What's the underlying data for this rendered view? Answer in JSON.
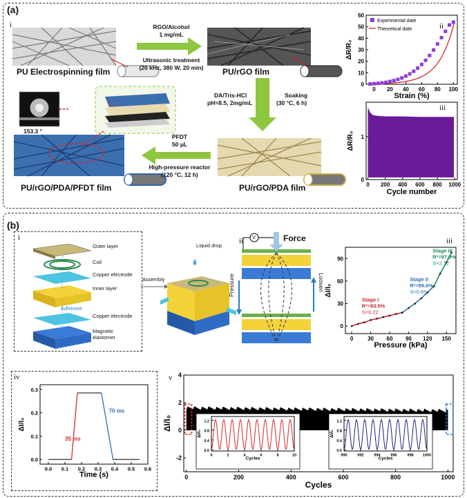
{
  "panel_a": {
    "label": "(a)",
    "sub_i": "i",
    "sub_ii": "ii",
    "sub_iii": "iii",
    "films": {
      "pu": "PU Electrospinning film",
      "rgo": "PU/rGO film",
      "pda": "PU/rGO/PDA film",
      "pfdt": "PU/rGO/PDA/PFDT film"
    },
    "step1": {
      "top1": "RGO/Alcohol",
      "top2": "1 mg/mL",
      "bot1": "Ultrasonic treatment",
      "bot2": "(20 kHz, 380 W, 20 min)"
    },
    "step2": {
      "left1": "DA/Tris-HCl",
      "left2": "pH=8.5, 2mg/mL",
      "right1": "Soaking",
      "right2": "(30 °C, 6 h)"
    },
    "step3": {
      "top1": "PFDT",
      "top2": "50 μL",
      "bot1": "High-pressure reactor",
      "bot2": "(120 °C, 12 h)"
    },
    "contact_angle": "153.3 °",
    "colors": {
      "arrow": "#8dc63f",
      "rgo": "#444444",
      "pda": "#c8b270",
      "pfdt": "#2f64a8",
      "pu": "#bbbbbb"
    }
  },
  "chart_data": [
    {
      "type": "scatter",
      "id": "a-ii",
      "legend": [
        "Experimental date",
        "Theoretical date"
      ],
      "xlabel": "Strain (%)",
      "ylabel": "ΔR/R₀",
      "xticks": [
        "0",
        "20",
        "40",
        "60",
        "80",
        "100"
      ],
      "yticks": [
        "0",
        "10",
        "20",
        "30",
        "40",
        "50",
        "60"
      ],
      "xlim": [
        -10,
        105
      ],
      "ylim": [
        0,
        60
      ],
      "x": [
        -5,
        0,
        5,
        10,
        15,
        20,
        25,
        30,
        35,
        40,
        45,
        50,
        55,
        60,
        65,
        70,
        75,
        80,
        85,
        90,
        95,
        100
      ],
      "y": [
        0.3,
        0.5,
        0.8,
        1.2,
        1.7,
        2.4,
        3.2,
        4.2,
        5.5,
        7.1,
        9.0,
        11.3,
        14.0,
        17.2,
        20.8,
        25.0,
        29.8,
        35.0,
        40.5,
        46.0,
        51.5,
        54.0
      ],
      "colors": {
        "exp": "#8b3fd6",
        "theory": "#d62728"
      }
    },
    {
      "type": "area",
      "id": "a-iii",
      "xlabel": "Cycle number",
      "ylabel": "ΔR/R₀",
      "xticks": [
        "0",
        "200",
        "400",
        "600",
        "800",
        "1000"
      ],
      "yticks": [
        "0",
        "1"
      ],
      "xlim": [
        -20,
        1030
      ],
      "ylim": [
        0,
        1.8
      ],
      "x": [
        0,
        30,
        60,
        120,
        200,
        400,
        600,
        800,
        990
      ],
      "upper": [
        1.68,
        1.55,
        1.5,
        1.48,
        1.47,
        1.47,
        1.46,
        1.46,
        1.46
      ],
      "color": "#6a1b9a"
    },
    {
      "type": "scatter",
      "id": "b-iii",
      "xlabel": "Pressure (kPa)",
      "ylabel": "ΔI/I₀",
      "xticks": [
        "0",
        "30",
        "60",
        "90",
        "120",
        "150"
      ],
      "yticks": [
        "0",
        "30",
        "60",
        "90"
      ],
      "xlim": [
        -10,
        165
      ],
      "ylim": [
        -10,
        105
      ],
      "stages": [
        {
          "name": "Stage I",
          "r2": "R²=93.5%",
          "s": "S=0.22",
          "color": "#c0282d",
          "x": [
            0,
            10,
            20,
            30,
            40,
            50,
            60,
            70,
            80
          ],
          "y": [
            0,
            3,
            5,
            8,
            10,
            12,
            14,
            16,
            18
          ]
        },
        {
          "name": "Stage II",
          "r2": "R²=99.6%",
          "s": "S=0.65",
          "color": "#2f6fb5",
          "x": [
            80,
            90,
            100,
            110,
            120,
            130
          ],
          "y": [
            18,
            24,
            30,
            37,
            45,
            53
          ]
        },
        {
          "name": "Stage III",
          "r2": "R²=97.9%",
          "s": "S=2.12",
          "color": "#1b8a5a",
          "x": [
            130,
            140,
            150,
            158
          ],
          "y": [
            53,
            70,
            85,
            98
          ]
        }
      ]
    },
    {
      "type": "line",
      "id": "b-iv",
      "xlabel": "Time (s)",
      "ylabel": "ΔI/I₀",
      "xticks": [
        "0.0",
        "0.1",
        "0.2",
        "0.3",
        "0.4",
        "0.5",
        "0.6"
      ],
      "yticks": [
        "0.0",
        "0.1",
        "0.2",
        "0.3"
      ],
      "xlim": [
        -0.05,
        0.6
      ],
      "ylim": [
        -0.02,
        0.32
      ],
      "x": [
        0.0,
        0.14,
        0.175,
        0.32,
        0.39,
        0.55
      ],
      "y": [
        0.0,
        0.0,
        0.285,
        0.285,
        0.0,
        0.0
      ],
      "annotations": [
        "35 ms",
        "70 ms"
      ],
      "colors": {
        "base": "#333333",
        "rise": "#d62728",
        "fall": "#2f6fb5"
      }
    },
    {
      "type": "area",
      "id": "b-v",
      "xlabel": "Cycles",
      "ylabel": "ΔI/I₀",
      "xticks": [
        "0",
        "200",
        "400",
        "600",
        "800",
        "1000"
      ],
      "yticks": [
        "-2",
        "0",
        "2",
        "4"
      ],
      "xlim": [
        -10,
        1020
      ],
      "ylim": [
        -3,
        4
      ],
      "x": [
        0,
        1000
      ],
      "upper": [
        1.5,
        1.3
      ],
      "lower": [
        0,
        0
      ],
      "insets": [
        {
          "xlabel": "Cycles",
          "ylabel": "ΔI/I₀",
          "xticks": [
            "0",
            "2",
            "4",
            "6",
            "8",
            "10"
          ],
          "yticks": [
            "0.0",
            "0.4",
            "0.8",
            "1.2"
          ],
          "xlim": [
            0,
            10
          ],
          "color": "#d62728"
        },
        {
          "xlabel": "Cycles",
          "ylabel": "ΔI/I₀",
          "xticks": [
            "990",
            "992",
            "994",
            "996",
            "998",
            "1000"
          ],
          "yticks": [
            "0.0",
            "0.4",
            "0.8",
            "1.2"
          ],
          "xlim": [
            990,
            1000
          ],
          "color": "#1a237e"
        }
      ]
    }
  ],
  "panel_b": {
    "label": "(b)",
    "sub_i": "i",
    "sub_ii": "ii",
    "sub_iii": "iii",
    "sub_iv": "iv",
    "sub_v": "v",
    "layers": [
      "Outer layer",
      "Coil",
      "Copper electrode",
      "Inner layer",
      "Adhesive",
      "Copper electrode",
      "Magnetic elastomer"
    ],
    "assembly": "Assembly",
    "liquid_drop": "Liquid drop",
    "force": "Force",
    "pressure": "Pressure",
    "loosen": "Loosen",
    "voltmeter": "V"
  }
}
